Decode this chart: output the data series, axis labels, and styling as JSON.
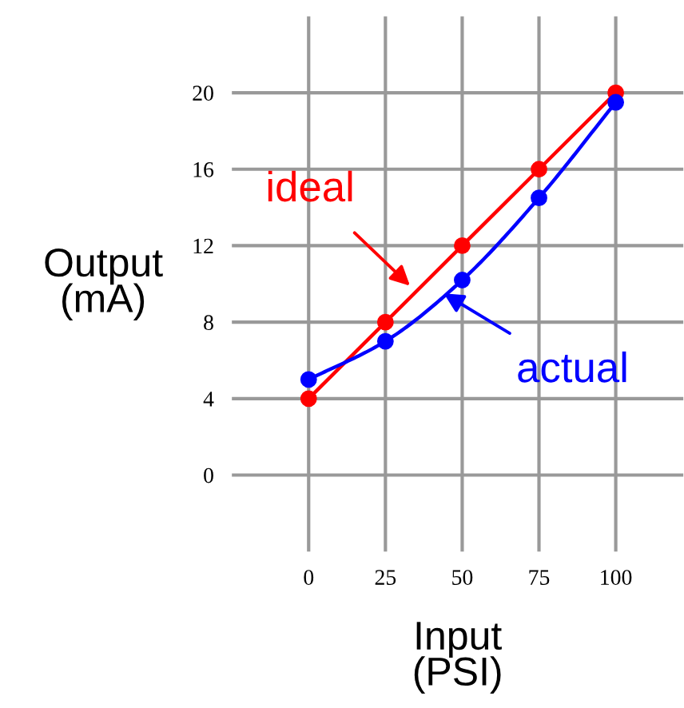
{
  "chart_data": {
    "type": "line",
    "xlabel": "Input\n(PSI)",
    "ylabel": "Output\n(mA)",
    "x": [
      0,
      25,
      50,
      75,
      100
    ],
    "series": [
      {
        "color": "#ff0000",
        "values": [
          4,
          8,
          12,
          16,
          20
        ]
      },
      {
        "color": "#0000ff",
        "values": [
          5,
          7,
          10.2,
          14.5,
          19.5
        ]
      }
    ],
    "annotations": [
      {
        "text": "ideal",
        "x": 33,
        "y": 9.9
      },
      {
        "text": "actual",
        "x": 44,
        "y": 9.5
      }
    ],
    "xlim": [
      -25,
      122
    ],
    "ylim": [
      -4,
      24
    ],
    "xticks": [
      0,
      25,
      50,
      75,
      100
    ],
    "yticks": [
      0,
      4,
      8,
      12,
      16,
      20
    ],
    "grid": true,
    "marker": "circle",
    "line_style": "solid",
    "legend": false
  }
}
